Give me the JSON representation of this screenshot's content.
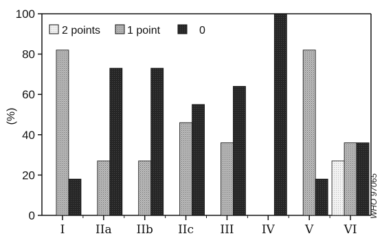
{
  "chart_data": {
    "type": "bar",
    "ylabel": "(%)",
    "ylim": [
      0,
      100
    ],
    "yticks": [
      "0",
      "20",
      "40",
      "60",
      "80",
      "100"
    ],
    "categories": [
      "I",
      "IIa",
      "IIb",
      "IIc",
      "III",
      "IV",
      "V",
      "VI"
    ],
    "series": [
      {
        "name": "2 points",
        "color": "#e8e8e8",
        "pattern": "light-dotted",
        "values": [
          0,
          0,
          0,
          0,
          0,
          0,
          0,
          27
        ]
      },
      {
        "name": "1 point",
        "color": "#a8a8a8",
        "pattern": "gray-crosshatch",
        "values": [
          82,
          27,
          27,
          46,
          36,
          0,
          82,
          36
        ]
      },
      {
        "name": "0",
        "color": "#222222",
        "pattern": "dark",
        "values": [
          18,
          73,
          73,
          55,
          64,
          100,
          18,
          36
        ]
      }
    ],
    "legend_position": "top-left",
    "grid": false,
    "side_note": "WHO 97065"
  }
}
